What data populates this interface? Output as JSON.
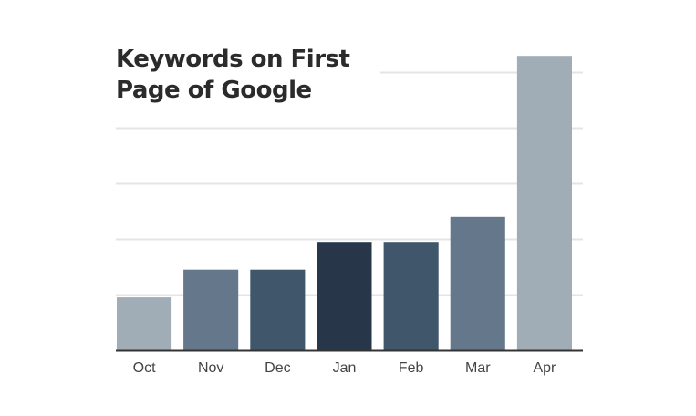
{
  "chart_data": {
    "type": "bar",
    "title": "Keywords on First Page of Google",
    "xlabel": "",
    "ylabel": "",
    "categories": [
      "Oct",
      "Nov",
      "Dec",
      "Jan",
      "Feb",
      "Mar",
      "Apr"
    ],
    "values": [
      19,
      29,
      29,
      39,
      39,
      48,
      106
    ],
    "ylim": [
      0,
      110
    ],
    "gridlines": [
      20,
      40,
      60,
      80,
      100
    ],
    "y_tick_labels_shown": false,
    "grid": true,
    "legend": "none",
    "bar_colors": [
      "#a0adb7",
      "#65788b",
      "#3f566b",
      "#28364a",
      "#3f566b",
      "#65788b",
      "#a0adb7"
    ],
    "grid_color": "#e4e4e4",
    "axis_color": "#333333",
    "text_color": "#444444"
  }
}
